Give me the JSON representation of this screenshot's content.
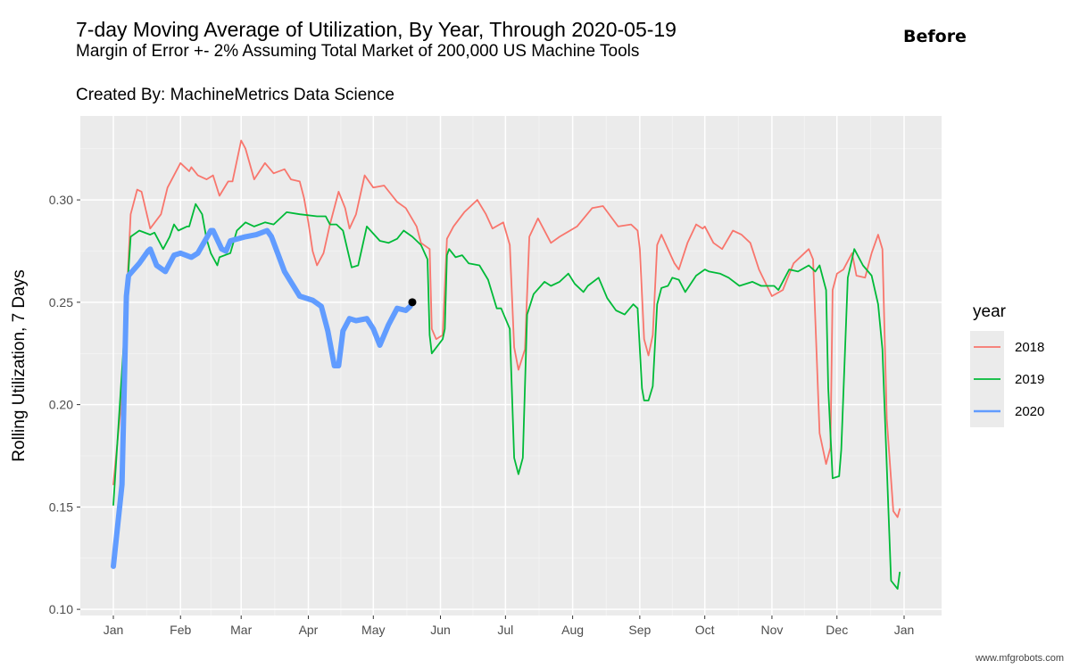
{
  "header": {
    "title": "7-day Moving Average of Utilization, By Year, Through 2020-05-19",
    "subtitle": "Margin of Error +- 2% Assuming Total Market of 200,000 US Machine Tools",
    "caption": "Created By: MachineMetrics Data Science",
    "badge": "Before"
  },
  "watermark": "www.mfgrobots.com",
  "chart_data": {
    "type": "line",
    "title": "7-day Moving Average of Utilization, By Year, Through 2020-05-19",
    "xlabel": "",
    "ylabel": "Rolling Utilization, 7 Days",
    "x_ticks": [
      "Jan",
      "Feb",
      "Mar",
      "Apr",
      "May",
      "Jun",
      "Jul",
      "Aug",
      "Sep",
      "Oct",
      "Nov",
      "Dec",
      "Jan"
    ],
    "y_ticks": [
      "0.10",
      "0.15",
      "0.20",
      "0.25",
      "0.30"
    ],
    "ylim": [
      0.097,
      0.341
    ],
    "grid": true,
    "legend": {
      "title": "year",
      "position": "right"
    },
    "colors": {
      "2018": "#F8766D",
      "2019": "#00BA38",
      "2020": "#619CFF",
      "marker": "#000000"
    },
    "series": [
      {
        "name": "2018",
        "points": [
          [
            "01-01",
            0.161
          ],
          [
            "01-05",
            0.205
          ],
          [
            "01-09",
            0.293
          ],
          [
            "01-12",
            0.305
          ],
          [
            "01-14",
            0.304
          ],
          [
            "01-18",
            0.286
          ],
          [
            "01-23",
            0.293
          ],
          [
            "01-26",
            0.306
          ],
          [
            "02-01",
            0.318
          ],
          [
            "02-05",
            0.314
          ],
          [
            "02-06",
            0.316
          ],
          [
            "02-09",
            0.312
          ],
          [
            "02-13",
            0.31
          ],
          [
            "02-16",
            0.312
          ],
          [
            "02-19",
            0.302
          ],
          [
            "02-23",
            0.309
          ],
          [
            "02-25",
            0.309
          ],
          [
            "03-01",
            0.329
          ],
          [
            "03-03",
            0.325
          ],
          [
            "03-07",
            0.31
          ],
          [
            "03-12",
            0.318
          ],
          [
            "03-16",
            0.313
          ],
          [
            "03-21",
            0.315
          ],
          [
            "03-24",
            0.31
          ],
          [
            "03-28",
            0.309
          ],
          [
            "03-30",
            0.301
          ],
          [
            "04-01",
            0.289
          ],
          [
            "04-03",
            0.275
          ],
          [
            "04-05",
            0.268
          ],
          [
            "04-08",
            0.274
          ],
          [
            "04-11",
            0.288
          ],
          [
            "04-15",
            0.304
          ],
          [
            "04-18",
            0.296
          ],
          [
            "04-20",
            0.286
          ],
          [
            "04-23",
            0.293
          ],
          [
            "04-27",
            0.312
          ],
          [
            "05-01",
            0.306
          ],
          [
            "05-06",
            0.307
          ],
          [
            "05-12",
            0.299
          ],
          [
            "05-16",
            0.296
          ],
          [
            "05-21",
            0.287
          ],
          [
            "05-23",
            0.279
          ],
          [
            "05-27",
            0.276
          ],
          [
            "05-28",
            0.237
          ],
          [
            "05-30",
            0.232
          ],
          [
            "06-02",
            0.234
          ],
          [
            "06-04",
            0.281
          ],
          [
            "06-07",
            0.287
          ],
          [
            "06-12",
            0.294
          ],
          [
            "06-18",
            0.3
          ],
          [
            "06-22",
            0.293
          ],
          [
            "06-25",
            0.286
          ],
          [
            "06-30",
            0.289
          ],
          [
            "07-03",
            0.278
          ],
          [
            "07-05",
            0.228
          ],
          [
            "07-07",
            0.217
          ],
          [
            "07-10",
            0.227
          ],
          [
            "07-12",
            0.282
          ],
          [
            "07-16",
            0.291
          ],
          [
            "07-22",
            0.279
          ],
          [
            "07-26",
            0.282
          ],
          [
            "08-03",
            0.287
          ],
          [
            "08-10",
            0.296
          ],
          [
            "08-15",
            0.297
          ],
          [
            "08-22",
            0.287
          ],
          [
            "08-28",
            0.288
          ],
          [
            "08-31",
            0.285
          ],
          [
            "09-01",
            0.276
          ],
          [
            "09-03",
            0.232
          ],
          [
            "09-05",
            0.224
          ],
          [
            "09-07",
            0.234
          ],
          [
            "09-09",
            0.278
          ],
          [
            "09-11",
            0.283
          ],
          [
            "09-14",
            0.276
          ],
          [
            "09-17",
            0.269
          ],
          [
            "09-19",
            0.266
          ],
          [
            "09-23",
            0.279
          ],
          [
            "09-27",
            0.288
          ],
          [
            "09-30",
            0.286
          ],
          [
            "10-01",
            0.287
          ],
          [
            "10-05",
            0.279
          ],
          [
            "10-09",
            0.276
          ],
          [
            "10-14",
            0.285
          ],
          [
            "10-18",
            0.283
          ],
          [
            "10-22",
            0.279
          ],
          [
            "10-26",
            0.266
          ],
          [
            "11-01",
            0.253
          ],
          [
            "11-06",
            0.256
          ],
          [
            "11-11",
            0.269
          ],
          [
            "11-18",
            0.276
          ],
          [
            "11-20",
            0.271
          ],
          [
            "11-23",
            0.186
          ],
          [
            "11-26",
            0.171
          ],
          [
            "11-28",
            0.179
          ],
          [
            "11-29",
            0.256
          ],
          [
            "12-01",
            0.264
          ],
          [
            "12-04",
            0.266
          ],
          [
            "12-08",
            0.274
          ],
          [
            "12-10",
            0.263
          ],
          [
            "12-14",
            0.262
          ],
          [
            "12-17",
            0.274
          ],
          [
            "12-20",
            0.283
          ],
          [
            "12-22",
            0.276
          ],
          [
            "12-24",
            0.193
          ],
          [
            "12-27",
            0.148
          ],
          [
            "12-29",
            0.145
          ],
          [
            "12-30",
            0.149
          ]
        ]
      },
      {
        "name": "2019",
        "points": [
          [
            "01-01",
            0.151
          ],
          [
            "01-08",
            0.266
          ],
          [
            "01-09",
            0.282
          ],
          [
            "01-13",
            0.285
          ],
          [
            "01-18",
            0.283
          ],
          [
            "01-20",
            0.284
          ],
          [
            "01-24",
            0.276
          ],
          [
            "01-27",
            0.282
          ],
          [
            "01-29",
            0.288
          ],
          [
            "01-31",
            0.285
          ],
          [
            "02-04",
            0.287
          ],
          [
            "02-05",
            0.287
          ],
          [
            "02-08",
            0.298
          ],
          [
            "02-11",
            0.293
          ],
          [
            "02-13",
            0.281
          ],
          [
            "02-15",
            0.274
          ],
          [
            "02-18",
            0.268
          ],
          [
            "02-19",
            0.272
          ],
          [
            "02-24",
            0.274
          ],
          [
            "02-27",
            0.285
          ],
          [
            "03-03",
            0.289
          ],
          [
            "03-07",
            0.287
          ],
          [
            "03-12",
            0.289
          ],
          [
            "03-16",
            0.288
          ],
          [
            "03-22",
            0.294
          ],
          [
            "03-28",
            0.293
          ],
          [
            "04-05",
            0.292
          ],
          [
            "04-09",
            0.292
          ],
          [
            "04-11",
            0.288
          ],
          [
            "04-14",
            0.288
          ],
          [
            "04-17",
            0.285
          ],
          [
            "04-21",
            0.267
          ],
          [
            "04-24",
            0.268
          ],
          [
            "04-28",
            0.287
          ],
          [
            "05-04",
            0.28
          ],
          [
            "05-08",
            0.279
          ],
          [
            "05-12",
            0.281
          ],
          [
            "05-15",
            0.285
          ],
          [
            "05-19",
            0.282
          ],
          [
            "05-23",
            0.278
          ],
          [
            "05-26",
            0.271
          ],
          [
            "05-27",
            0.234
          ],
          [
            "05-28",
            0.225
          ],
          [
            "06-02",
            0.232
          ],
          [
            "06-03",
            0.237
          ],
          [
            "06-04",
            0.273
          ],
          [
            "06-05",
            0.276
          ],
          [
            "06-08",
            0.272
          ],
          [
            "06-11",
            0.273
          ],
          [
            "06-14",
            0.269
          ],
          [
            "06-19",
            0.268
          ],
          [
            "06-23",
            0.261
          ],
          [
            "06-27",
            0.247
          ],
          [
            "06-29",
            0.247
          ],
          [
            "07-03",
            0.237
          ],
          [
            "07-05",
            0.174
          ],
          [
            "07-07",
            0.166
          ],
          [
            "07-09",
            0.174
          ],
          [
            "07-11",
            0.244
          ],
          [
            "07-14",
            0.254
          ],
          [
            "07-19",
            0.26
          ],
          [
            "07-22",
            0.258
          ],
          [
            "07-26",
            0.26
          ],
          [
            "07-30",
            0.264
          ],
          [
            "08-02",
            0.259
          ],
          [
            "08-06",
            0.255
          ],
          [
            "08-08",
            0.258
          ],
          [
            "08-13",
            0.262
          ],
          [
            "08-17",
            0.252
          ],
          [
            "08-21",
            0.246
          ],
          [
            "08-25",
            0.244
          ],
          [
            "08-29",
            0.249
          ],
          [
            "08-31",
            0.247
          ],
          [
            "09-02",
            0.208
          ],
          [
            "09-03",
            0.202
          ],
          [
            "09-05",
            0.202
          ],
          [
            "09-07",
            0.209
          ],
          [
            "09-09",
            0.249
          ],
          [
            "09-11",
            0.257
          ],
          [
            "09-14",
            0.258
          ],
          [
            "09-16",
            0.262
          ],
          [
            "09-19",
            0.261
          ],
          [
            "09-22",
            0.255
          ],
          [
            "09-27",
            0.263
          ],
          [
            "10-01",
            0.266
          ],
          [
            "10-03",
            0.265
          ],
          [
            "10-08",
            0.264
          ],
          [
            "10-12",
            0.262
          ],
          [
            "10-17",
            0.258
          ],
          [
            "10-23",
            0.26
          ],
          [
            "10-27",
            0.258
          ],
          [
            "11-02",
            0.258
          ],
          [
            "11-04",
            0.256
          ],
          [
            "11-09",
            0.266
          ],
          [
            "11-13",
            0.265
          ],
          [
            "11-18",
            0.268
          ],
          [
            "11-21",
            0.265
          ],
          [
            "11-23",
            0.268
          ],
          [
            "11-26",
            0.256
          ],
          [
            "11-27",
            0.208
          ],
          [
            "11-29",
            0.164
          ],
          [
            "12-02",
            0.165
          ],
          [
            "12-03",
            0.178
          ],
          [
            "12-06",
            0.262
          ],
          [
            "12-09",
            0.276
          ],
          [
            "12-13",
            0.268
          ],
          [
            "12-17",
            0.263
          ],
          [
            "12-20",
            0.249
          ],
          [
            "12-22",
            0.227
          ],
          [
            "12-26",
            0.114
          ],
          [
            "12-29",
            0.11
          ],
          [
            "12-30",
            0.118
          ]
        ]
      },
      {
        "name": "2020",
        "points": [
          [
            "01-01",
            0.121
          ],
          [
            "01-05",
            0.161
          ],
          [
            "01-07",
            0.253
          ],
          [
            "01-08",
            0.263
          ],
          [
            "01-13",
            0.269
          ],
          [
            "01-17",
            0.275
          ],
          [
            "01-18",
            0.276
          ],
          [
            "01-21",
            0.268
          ],
          [
            "01-25",
            0.265
          ],
          [
            "01-29",
            0.273
          ],
          [
            "02-01",
            0.274
          ],
          [
            "02-06",
            0.272
          ],
          [
            "02-09",
            0.274
          ],
          [
            "02-15",
            0.285
          ],
          [
            "02-16",
            0.285
          ],
          [
            "02-20",
            0.276
          ],
          [
            "02-22",
            0.275
          ],
          [
            "02-24",
            0.28
          ],
          [
            "03-03",
            0.282
          ],
          [
            "03-08",
            0.283
          ],
          [
            "03-13",
            0.285
          ],
          [
            "03-15",
            0.282
          ],
          [
            "03-21",
            0.265
          ],
          [
            "03-28",
            0.253
          ],
          [
            "04-03",
            0.251
          ],
          [
            "04-07",
            0.248
          ],
          [
            "04-10",
            0.236
          ],
          [
            "04-13",
            0.219
          ],
          [
            "04-15",
            0.219
          ],
          [
            "04-17",
            0.236
          ],
          [
            "04-20",
            0.242
          ],
          [
            "04-23",
            0.241
          ],
          [
            "04-28",
            0.242
          ],
          [
            "05-01",
            0.237
          ],
          [
            "05-04",
            0.229
          ],
          [
            "05-08",
            0.239
          ],
          [
            "05-12",
            0.247
          ],
          [
            "05-16",
            0.246
          ],
          [
            "05-18",
            0.248
          ]
        ]
      }
    ],
    "marker": {
      "x": "05-19",
      "y": 0.25
    }
  }
}
